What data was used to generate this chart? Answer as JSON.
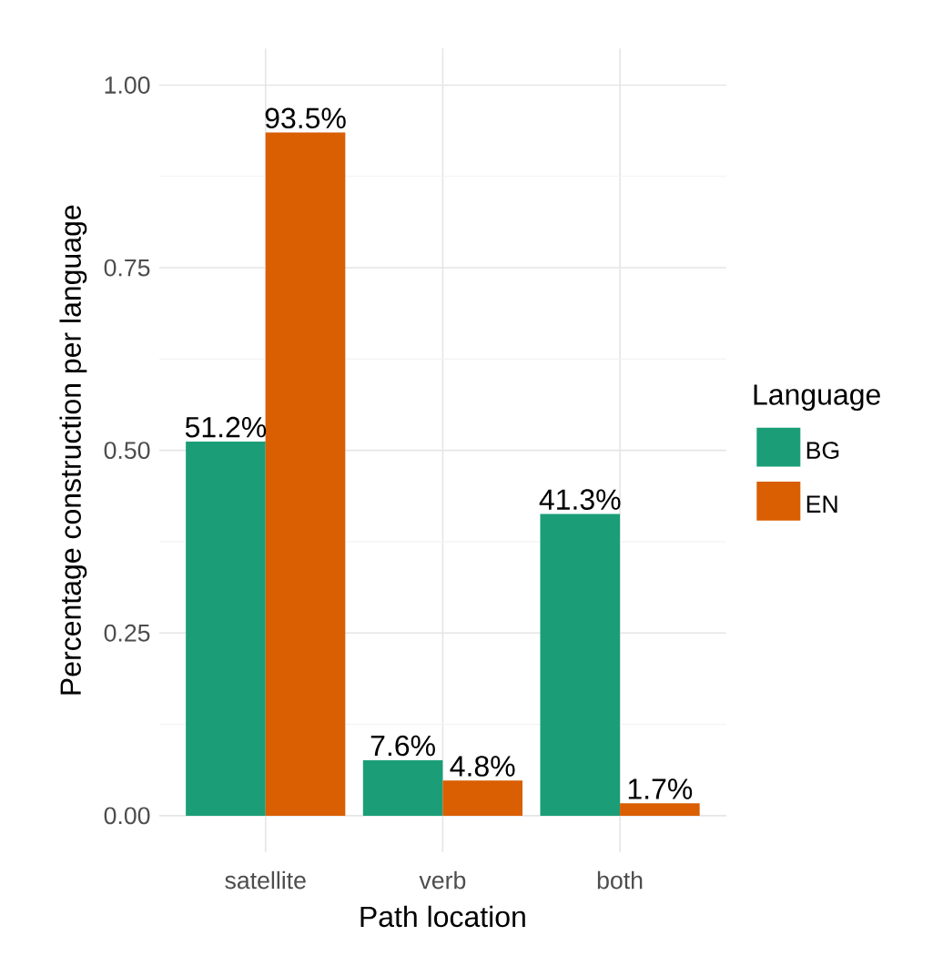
{
  "chart_data": {
    "type": "bar",
    "xlabel": "Path location",
    "ylabel": "Percentage construction per language",
    "legend_title": "Language",
    "categories": [
      "satellite",
      "verb",
      "both"
    ],
    "series": [
      {
        "name": "BG",
        "color": "#1b9e77",
        "values": [
          0.512,
          0.076,
          0.413
        ],
        "value_labels": [
          "51.2%",
          "7.6%",
          "41.3%"
        ]
      },
      {
        "name": "EN",
        "color": "#d95f02",
        "values": [
          0.935,
          0.048,
          0.017
        ],
        "value_labels": [
          "93.5%",
          "4.8%",
          "1.7%"
        ]
      }
    ],
    "ylim": [
      -0.05,
      1.05
    ],
    "yticks": [
      {
        "value": 0,
        "label": "0.00"
      },
      {
        "value": 0.25,
        "label": "0.25"
      },
      {
        "value": 0.5,
        "label": "0.50"
      },
      {
        "value": 0.75,
        "label": "0.75"
      },
      {
        "value": 1,
        "label": "1.00"
      }
    ],
    "grid": true,
    "legend": "right"
  }
}
